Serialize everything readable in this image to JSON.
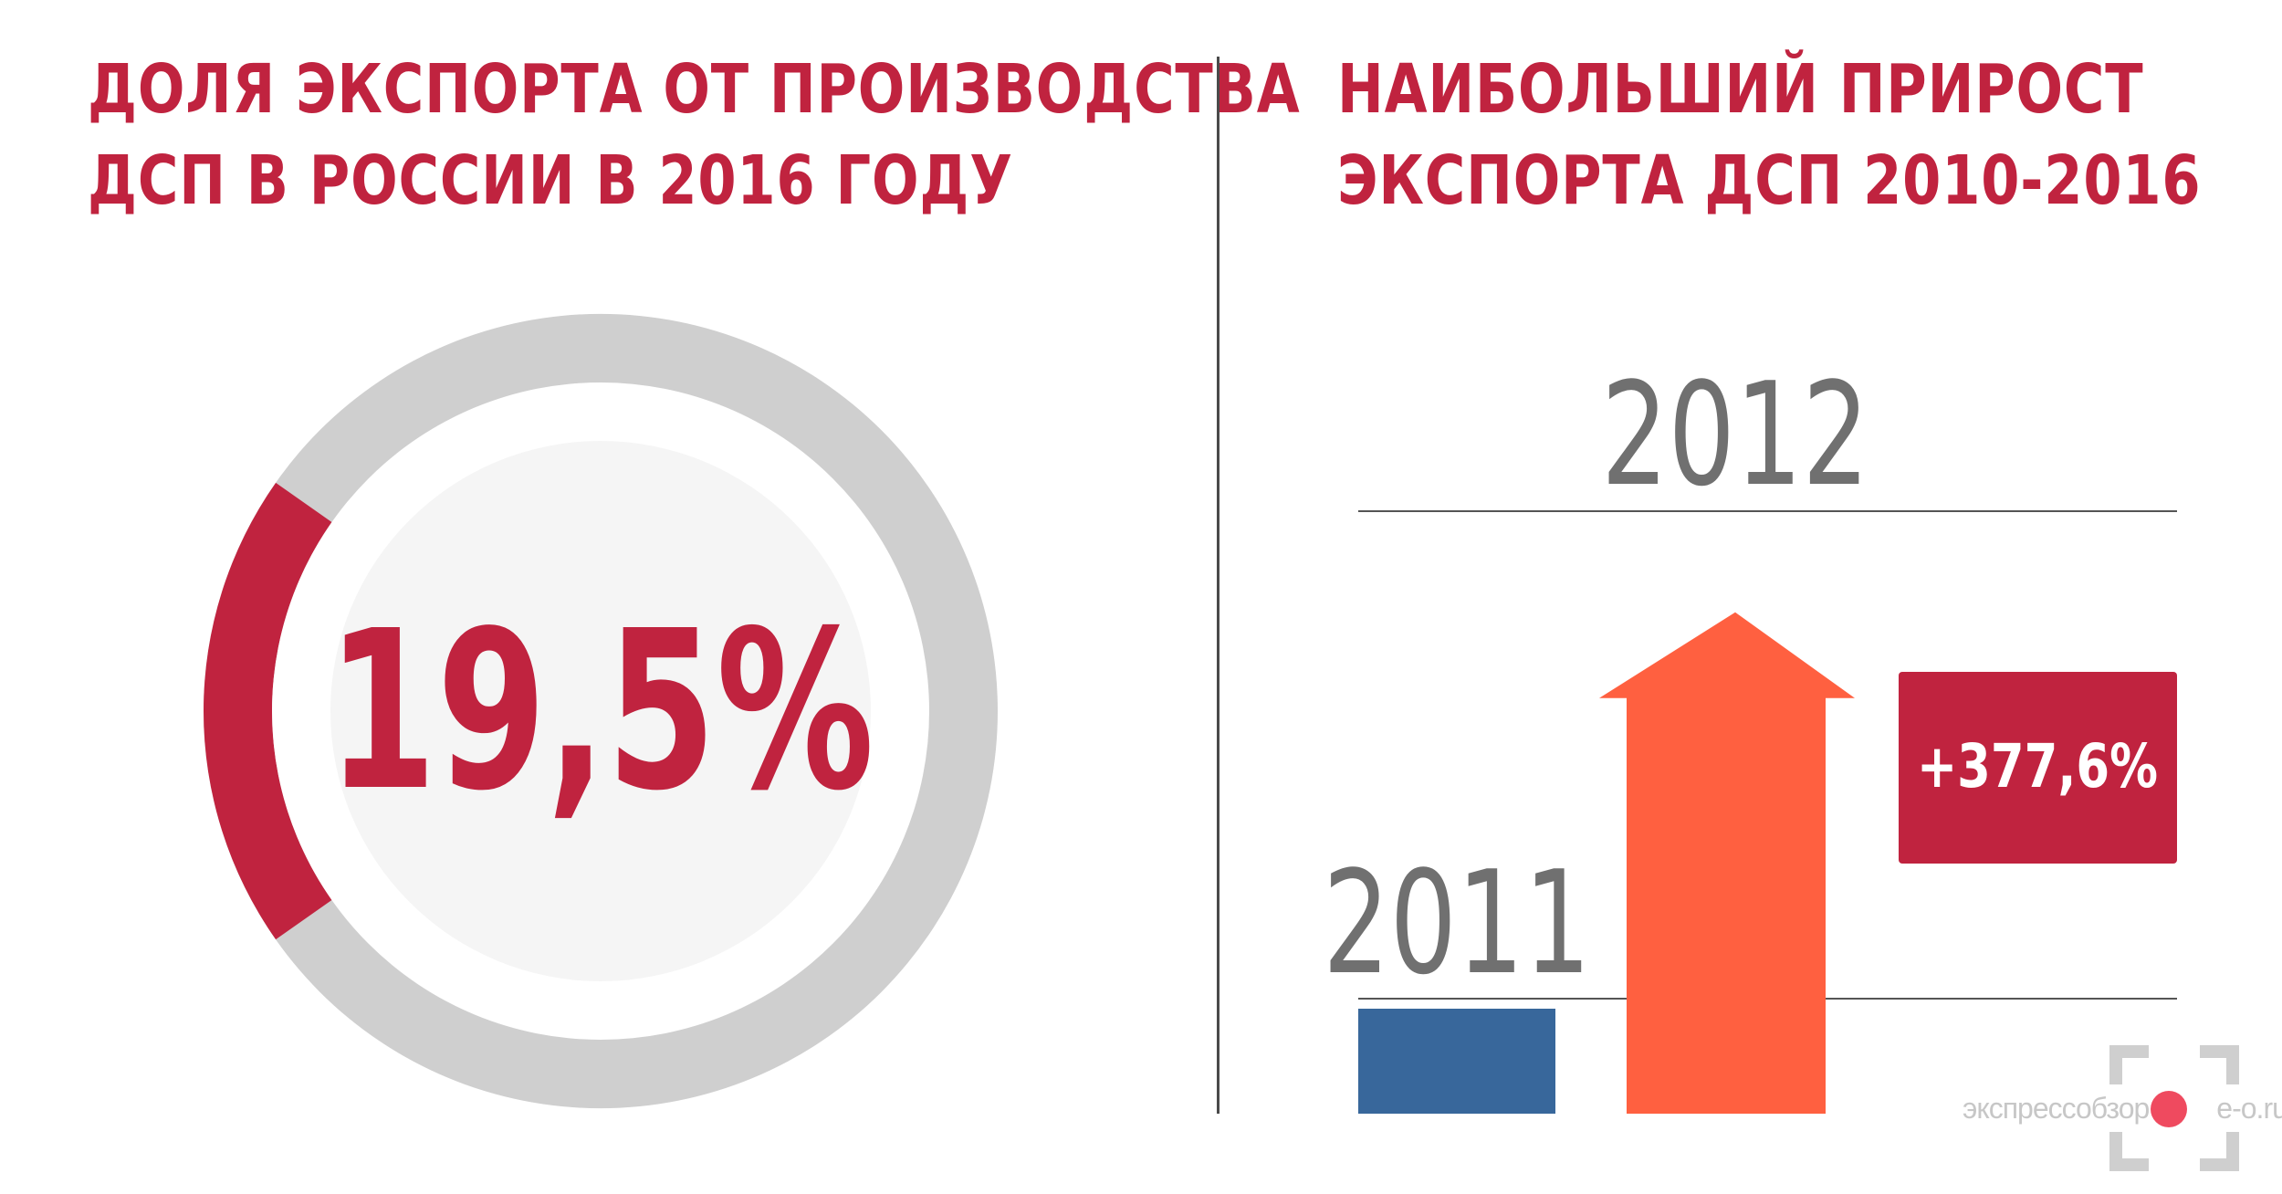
{
  "left_panel": {
    "title_line1": "ДОЛЯ ЭКСПОРТА ОТ ПРОИЗВОДСТВА",
    "title_line2": "ДСП В РОССИИ В 2016 ГОДУ",
    "value_label": "19,5%"
  },
  "right_panel": {
    "title_line1": "НАИБОЛЬШИЙ ПРИРОСТ",
    "title_line2": "ЭКСПОРТА ДСП 2010-2016",
    "growth_label": "+377,6%"
  },
  "chart_data": [
    {
      "type": "pie",
      "values": [
        19.5,
        80.5
      ],
      "value_label": "19,5%",
      "colors": [
        "#c0233f",
        "#cfcfcf"
      ]
    },
    {
      "type": "bar",
      "categories": [
        "2011",
        "2012"
      ],
      "values": [
        1,
        4.776
      ],
      "annotation": "+377,6%",
      "colors": [
        "#38679b",
        "#ff6040"
      ],
      "note_color": "#c0233f"
    }
  ],
  "watermark": {
    "text_left": "экспрессобзор",
    "text_right": "e-o.ru"
  }
}
